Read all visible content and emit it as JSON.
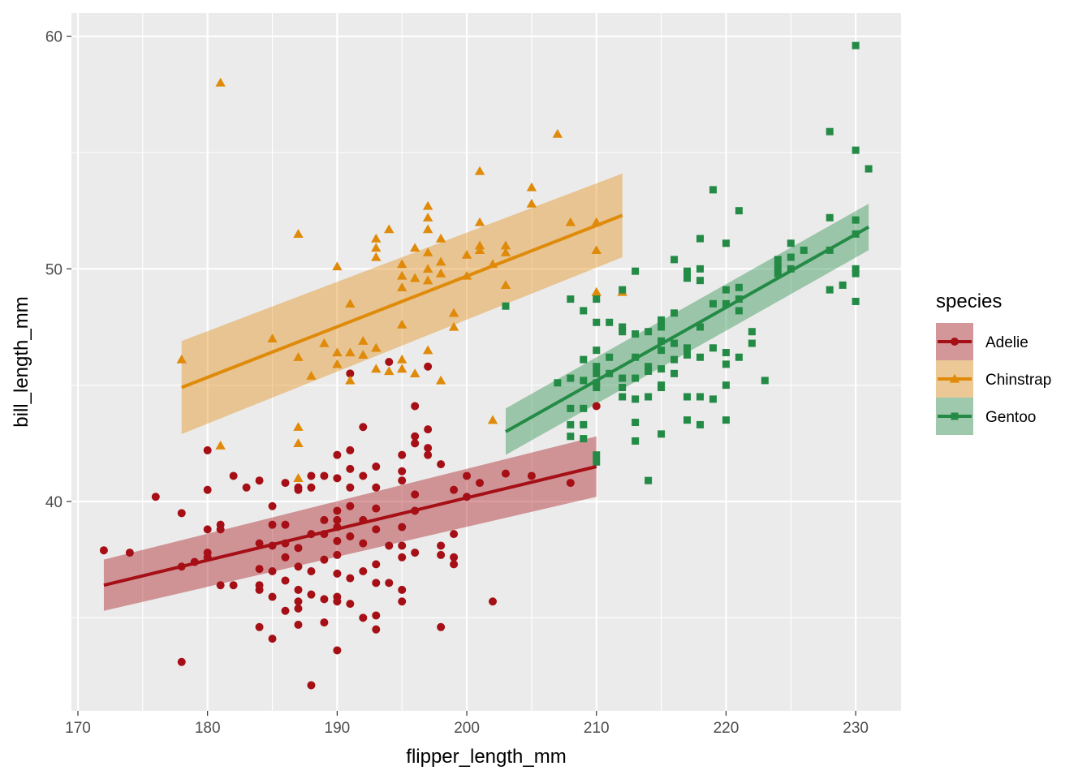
{
  "chart_data": {
    "type": "scatter",
    "xlabel": "flipper_length_mm",
    "ylabel": "bill_length_mm",
    "xlim": [
      169.5,
      233.5
    ],
    "ylim": [
      31.0,
      61.0
    ],
    "x_ticks": [
      170,
      180,
      190,
      200,
      210,
      220,
      230
    ],
    "y_ticks": [
      40,
      50,
      60
    ],
    "y_minor_ticks": [
      35,
      45,
      55
    ],
    "x_minor_ticks": [
      175,
      185,
      195,
      205,
      215,
      225
    ],
    "grid": true,
    "legend": {
      "title": "species",
      "position": "right"
    },
    "series": [
      {
        "name": "Adelie",
        "color": "#a50f15",
        "marker": "circle",
        "fit": {
          "x": [
            172,
            210
          ],
          "y": [
            36.4,
            41.5
          ],
          "band_lower": [
            35.3,
            40.2
          ],
          "band_upper": [
            37.5,
            42.8
          ]
        },
        "points": [
          [
            172,
            37.9
          ],
          [
            174,
            37.8
          ],
          [
            176,
            40.2
          ],
          [
            178,
            39.5
          ],
          [
            178,
            37.2
          ],
          [
            178,
            33.1
          ],
          [
            179,
            37.4
          ],
          [
            180,
            42.2
          ],
          [
            180,
            40.5
          ],
          [
            180,
            38.8
          ],
          [
            180,
            37.8
          ],
          [
            180,
            37.6
          ],
          [
            181,
            39.0
          ],
          [
            181,
            38.8
          ],
          [
            181,
            36.4
          ],
          [
            182,
            41.1
          ],
          [
            182,
            36.4
          ],
          [
            183,
            40.6
          ],
          [
            184,
            40.9
          ],
          [
            184,
            38.2
          ],
          [
            184,
            37.1
          ],
          [
            184,
            36.4
          ],
          [
            184,
            36.2
          ],
          [
            184,
            34.6
          ],
          [
            185,
            39.8
          ],
          [
            185,
            39.0
          ],
          [
            185,
            38.1
          ],
          [
            185,
            37.0
          ],
          [
            185,
            35.9
          ],
          [
            185,
            34.1
          ],
          [
            186,
            40.8
          ],
          [
            186,
            39.0
          ],
          [
            186,
            38.2
          ],
          [
            186,
            37.6
          ],
          [
            186,
            36.6
          ],
          [
            186,
            35.3
          ],
          [
            187,
            40.6
          ],
          [
            187,
            40.5
          ],
          [
            187,
            38.0
          ],
          [
            187,
            37.2
          ],
          [
            187,
            36.2
          ],
          [
            187,
            35.7
          ],
          [
            187,
            35.4
          ],
          [
            187,
            34.7
          ],
          [
            188,
            41.1
          ],
          [
            188,
            40.6
          ],
          [
            188,
            38.6
          ],
          [
            188,
            37.0
          ],
          [
            188,
            36.0
          ],
          [
            188,
            32.1
          ],
          [
            189,
            41.1
          ],
          [
            189,
            39.2
          ],
          [
            189,
            38.6
          ],
          [
            189,
            37.5
          ],
          [
            189,
            35.8
          ],
          [
            189,
            34.8
          ],
          [
            190,
            42.0
          ],
          [
            190,
            41.0
          ],
          [
            190,
            39.6
          ],
          [
            190,
            39.2
          ],
          [
            190,
            38.9
          ],
          [
            190,
            38.3
          ],
          [
            190,
            37.7
          ],
          [
            190,
            36.9
          ],
          [
            190,
            35.9
          ],
          [
            190,
            35.7
          ],
          [
            190,
            33.6
          ],
          [
            191,
            45.5
          ],
          [
            191,
            42.2
          ],
          [
            191,
            41.4
          ],
          [
            191,
            40.6
          ],
          [
            191,
            39.8
          ],
          [
            191,
            38.5
          ],
          [
            191,
            36.7
          ],
          [
            191,
            35.6
          ],
          [
            192,
            43.2
          ],
          [
            192,
            41.1
          ],
          [
            192,
            39.2
          ],
          [
            192,
            38.2
          ],
          [
            192,
            37.0
          ],
          [
            192,
            35.0
          ],
          [
            193,
            41.5
          ],
          [
            193,
            40.6
          ],
          [
            193,
            39.7
          ],
          [
            193,
            38.8
          ],
          [
            193,
            37.3
          ],
          [
            193,
            36.5
          ],
          [
            193,
            35.1
          ],
          [
            193,
            34.5
          ],
          [
            194,
            46.0
          ],
          [
            194,
            38.1
          ],
          [
            194,
            36.5
          ],
          [
            195,
            42.0
          ],
          [
            195,
            41.3
          ],
          [
            195,
            40.9
          ],
          [
            195,
            38.9
          ],
          [
            195,
            38.1
          ],
          [
            195,
            37.6
          ],
          [
            195,
            36.2
          ],
          [
            195,
            35.7
          ],
          [
            196,
            44.1
          ],
          [
            196,
            42.8
          ],
          [
            196,
            42.5
          ],
          [
            196,
            40.3
          ],
          [
            196,
            39.6
          ],
          [
            196,
            37.8
          ],
          [
            197,
            45.8
          ],
          [
            197,
            43.1
          ],
          [
            197,
            42.3
          ],
          [
            197,
            42.0
          ],
          [
            198,
            41.6
          ],
          [
            198,
            38.1
          ],
          [
            198,
            37.7
          ],
          [
            198,
            34.6
          ],
          [
            199,
            40.5
          ],
          [
            199,
            38.6
          ],
          [
            199,
            37.6
          ],
          [
            199,
            37.3
          ],
          [
            200,
            41.1
          ],
          [
            200,
            40.2
          ],
          [
            201,
            40.8
          ],
          [
            202,
            35.7
          ],
          [
            203,
            41.2
          ],
          [
            205,
            41.1
          ],
          [
            208,
            40.8
          ],
          [
            210,
            44.1
          ]
        ]
      },
      {
        "name": "Chinstrap",
        "color": "#e08a0a",
        "marker": "triangle",
        "fit": {
          "x": [
            178,
            212
          ],
          "y": [
            44.9,
            52.3
          ],
          "band_lower": [
            42.9,
            50.5
          ],
          "band_upper": [
            46.9,
            54.1
          ]
        },
        "points": [
          [
            178,
            46.1
          ],
          [
            181,
            58.0
          ],
          [
            181,
            42.4
          ],
          [
            185,
            47.0
          ],
          [
            187,
            51.5
          ],
          [
            187,
            46.2
          ],
          [
            187,
            43.2
          ],
          [
            187,
            42.5
          ],
          [
            187,
            41.0
          ],
          [
            188,
            45.4
          ],
          [
            189,
            46.8
          ],
          [
            190,
            50.1
          ],
          [
            190,
            46.4
          ],
          [
            190,
            45.9
          ],
          [
            191,
            48.5
          ],
          [
            191,
            46.4
          ],
          [
            191,
            45.2
          ],
          [
            192,
            46.9
          ],
          [
            192,
            46.3
          ],
          [
            193,
            51.3
          ],
          [
            193,
            50.9
          ],
          [
            193,
            50.5
          ],
          [
            193,
            46.6
          ],
          [
            193,
            45.7
          ],
          [
            194,
            51.7
          ],
          [
            194,
            45.6
          ],
          [
            195,
            50.2
          ],
          [
            195,
            49.7
          ],
          [
            195,
            49.2
          ],
          [
            195,
            47.6
          ],
          [
            195,
            46.1
          ],
          [
            195,
            45.7
          ],
          [
            196,
            50.9
          ],
          [
            196,
            49.6
          ],
          [
            196,
            45.5
          ],
          [
            197,
            52.7
          ],
          [
            197,
            52.2
          ],
          [
            197,
            51.7
          ],
          [
            197,
            50.7
          ],
          [
            197,
            50.0
          ],
          [
            197,
            49.5
          ],
          [
            197,
            46.5
          ],
          [
            198,
            51.3
          ],
          [
            198,
            50.3
          ],
          [
            198,
            49.8
          ],
          [
            198,
            45.2
          ],
          [
            199,
            48.1
          ],
          [
            199,
            47.5
          ],
          [
            200,
            50.6
          ],
          [
            200,
            49.7
          ],
          [
            201,
            54.2
          ],
          [
            201,
            52.0
          ],
          [
            201,
            51.0
          ],
          [
            201,
            50.8
          ],
          [
            202,
            50.2
          ],
          [
            202,
            43.5
          ],
          [
            203,
            51.0
          ],
          [
            203,
            50.7
          ],
          [
            203,
            49.3
          ],
          [
            205,
            53.5
          ],
          [
            205,
            52.8
          ],
          [
            207,
            55.8
          ],
          [
            208,
            52.0
          ],
          [
            210,
            52.0
          ],
          [
            210,
            50.8
          ],
          [
            210,
            49.0
          ],
          [
            212,
            49.0
          ]
        ]
      },
      {
        "name": "Gentoo",
        "color": "#238b45",
        "marker": "square",
        "fit": {
          "x": [
            203,
            231
          ],
          "y": [
            43.0,
            51.8
          ],
          "band_lower": [
            42.0,
            50.8
          ],
          "band_upper": [
            44.0,
            52.8
          ]
        },
        "points": [
          [
            203,
            48.4
          ],
          [
            207,
            45.1
          ],
          [
            208,
            48.7
          ],
          [
            208,
            45.3
          ],
          [
            208,
            44.0
          ],
          [
            208,
            43.3
          ],
          [
            208,
            42.8
          ],
          [
            209,
            48.2
          ],
          [
            209,
            46.1
          ],
          [
            209,
            45.2
          ],
          [
            209,
            44.0
          ],
          [
            209,
            43.3
          ],
          [
            209,
            42.7
          ],
          [
            210,
            48.7
          ],
          [
            210,
            47.7
          ],
          [
            210,
            46.5
          ],
          [
            210,
            45.8
          ],
          [
            210,
            45.5
          ],
          [
            210,
            45.1
          ],
          [
            210,
            44.9
          ],
          [
            210,
            42.0
          ],
          [
            210,
            41.7
          ],
          [
            211,
            47.7
          ],
          [
            211,
            46.2
          ],
          [
            211,
            45.5
          ],
          [
            212,
            49.1
          ],
          [
            212,
            47.5
          ],
          [
            212,
            47.3
          ],
          [
            212,
            45.3
          ],
          [
            212,
            44.9
          ],
          [
            212,
            44.5
          ],
          [
            213,
            49.9
          ],
          [
            213,
            47.2
          ],
          [
            213,
            46.2
          ],
          [
            213,
            45.3
          ],
          [
            213,
            44.4
          ],
          [
            213,
            43.4
          ],
          [
            213,
            42.6
          ],
          [
            214,
            47.3
          ],
          [
            214,
            45.8
          ],
          [
            214,
            45.6
          ],
          [
            214,
            44.5
          ],
          [
            214,
            40.9
          ],
          [
            215,
            47.8
          ],
          [
            215,
            47.5
          ],
          [
            215,
            46.9
          ],
          [
            215,
            46.5
          ],
          [
            215,
            45.7
          ],
          [
            215,
            45.0
          ],
          [
            215,
            44.9
          ],
          [
            215,
            42.9
          ],
          [
            216,
            50.4
          ],
          [
            216,
            48.1
          ],
          [
            216,
            46.8
          ],
          [
            216,
            46.1
          ],
          [
            216,
            45.5
          ],
          [
            217,
            49.9
          ],
          [
            217,
            49.6
          ],
          [
            217,
            46.6
          ],
          [
            217,
            46.3
          ],
          [
            217,
            44.5
          ],
          [
            217,
            43.5
          ],
          [
            218,
            51.3
          ],
          [
            218,
            50.0
          ],
          [
            218,
            49.5
          ],
          [
            218,
            47.5
          ],
          [
            218,
            46.2
          ],
          [
            218,
            44.5
          ],
          [
            218,
            43.3
          ],
          [
            219,
            53.4
          ],
          [
            219,
            48.5
          ],
          [
            219,
            46.6
          ],
          [
            219,
            44.4
          ],
          [
            220,
            51.1
          ],
          [
            220,
            49.1
          ],
          [
            220,
            48.5
          ],
          [
            220,
            46.4
          ],
          [
            220,
            45.9
          ],
          [
            220,
            45.0
          ],
          [
            220,
            43.5
          ],
          [
            221,
            52.5
          ],
          [
            221,
            49.2
          ],
          [
            221,
            48.7
          ],
          [
            221,
            48.2
          ],
          [
            221,
            46.2
          ],
          [
            222,
            47.3
          ],
          [
            222,
            46.8
          ],
          [
            223,
            45.2
          ],
          [
            224,
            50.4
          ],
          [
            224,
            50.1
          ],
          [
            224,
            49.8
          ],
          [
            225,
            51.1
          ],
          [
            225,
            50.5
          ],
          [
            225,
            50.0
          ],
          [
            226,
            50.8
          ],
          [
            228,
            55.9
          ],
          [
            228,
            52.2
          ],
          [
            228,
            50.8
          ],
          [
            228,
            49.1
          ],
          [
            229,
            49.3
          ],
          [
            230,
            59.6
          ],
          [
            230,
            55.1
          ],
          [
            230,
            52.1
          ],
          [
            230,
            51.5
          ],
          [
            230,
            50.0
          ],
          [
            230,
            49.8
          ],
          [
            230,
            48.6
          ],
          [
            231,
            54.3
          ]
        ]
      }
    ]
  }
}
